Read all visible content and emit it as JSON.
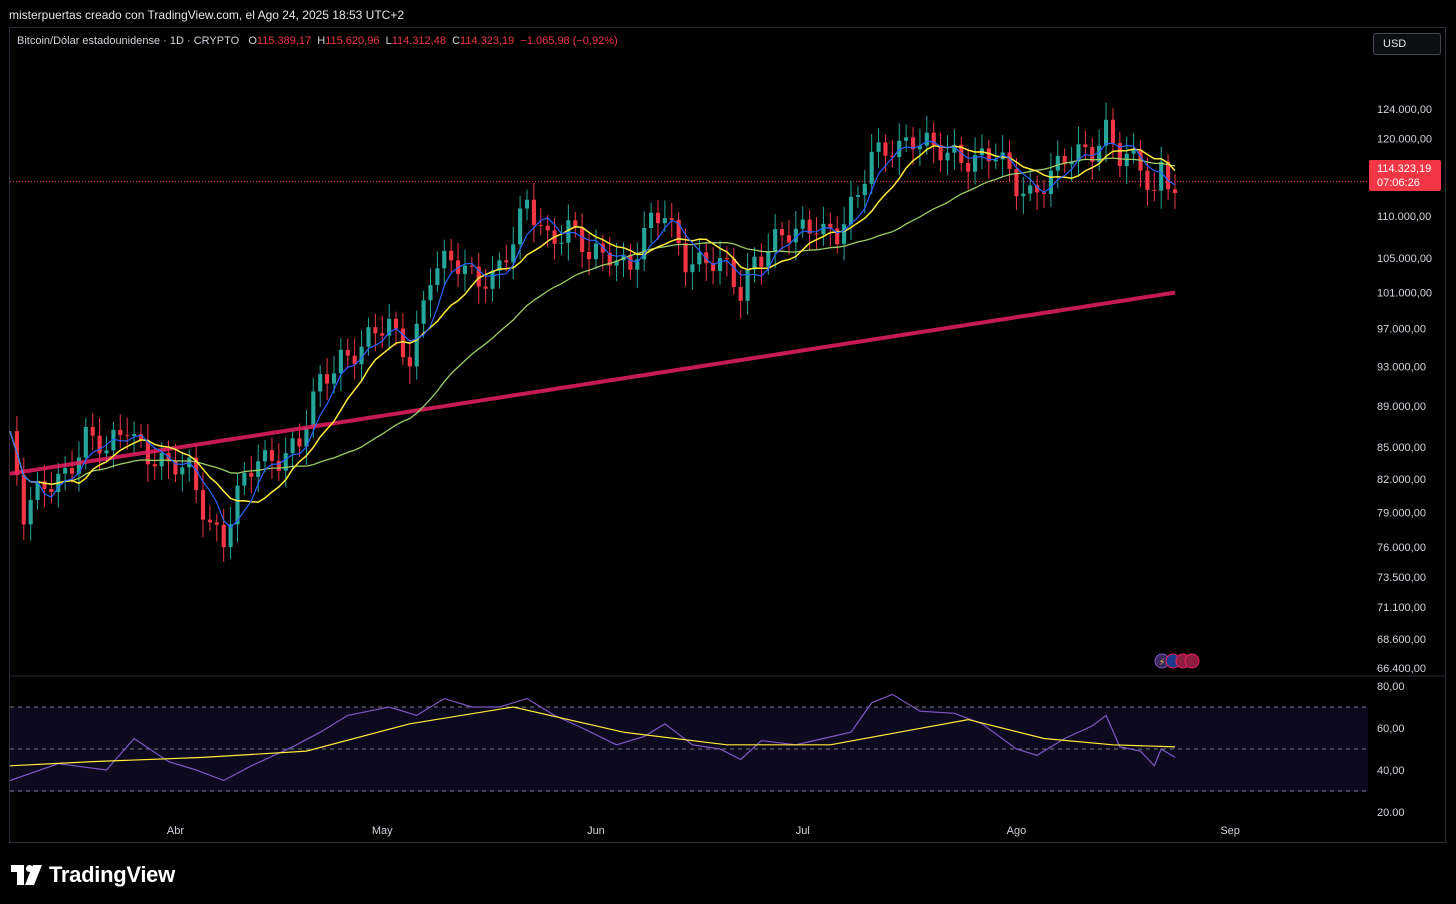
{
  "header": {
    "caption": "misterpuertas creado con TradingView.com, el Ago 24, 2025 18:53 UTC+2"
  },
  "legend": {
    "symbol": "Bitcoin/Dólar estadounidense · 1D · CRYPTO",
    "o_label": "O",
    "o_value": "115.389,17",
    "h_label": "H",
    "h_value": "115.620,96",
    "l_label": "L",
    "l_value": "114.312,48",
    "c_label": "C",
    "c_value": "114.323,19",
    "change": "−1.065,98 (−0,92%)"
  },
  "currency_button": "USD",
  "last_price": {
    "price": "114.323,19",
    "countdown": "07:06:26"
  },
  "footer": {
    "brand": "TradingView"
  },
  "colors": {
    "up": "#26a69a",
    "down": "#f23645",
    "ma_fast": "#2962ff",
    "ma_mid": "#ffeb3b",
    "ma_slow": "#9ccc65",
    "ma_long": "#e91e63",
    "rsi": "#7e57c2",
    "rsi_ma": "#ffeb3b"
  },
  "chart_data": [
    {
      "type": "candlestick",
      "title": "Bitcoin/Dólar estadounidense · 1D · CRYPTO",
      "scale": "log",
      "y_ticks": [
        "124.000,00",
        "120.000,00",
        "110.000,00",
        "105.000,00",
        "101.000,00",
        "97.000,00",
        "93.000,00",
        "89.000,00",
        "85.000,00",
        "82.000,00",
        "79.000,00",
        "76.000,00",
        "73.500,00",
        "71.100,00",
        "68.600,00",
        "66.400,00"
      ],
      "y_tick_values": [
        124000,
        120000,
        110000,
        105000,
        101000,
        97000,
        93000,
        89000,
        85000,
        82000,
        79000,
        76000,
        73500,
        71100,
        68600,
        66400
      ],
      "x_ticks": [
        "Abr",
        "May",
        "Jun",
        "Jul",
        "Ago",
        "Sep"
      ],
      "x_tick_dates": [
        "2025-04-01",
        "2025-05-01",
        "2025-06-01",
        "2025-07-01",
        "2025-08-01",
        "2025-09-01"
      ],
      "ylim": [
        66400,
        127500
      ],
      "xlim": [
        "2025-03-08",
        "2025-09-21"
      ],
      "close_series": [
        [
          "2025-03-08",
          86000
        ],
        [
          "2025-03-10",
          78500
        ],
        [
          "2025-03-13",
          81000
        ],
        [
          "2025-03-16",
          83000
        ],
        [
          "2025-03-19",
          86000
        ],
        [
          "2025-03-22",
          84000
        ],
        [
          "2025-03-25",
          87500
        ],
        [
          "2025-03-28",
          84500
        ],
        [
          "2025-03-31",
          82500
        ],
        [
          "2025-04-03",
          83000
        ],
        [
          "2025-04-06",
          78500
        ],
        [
          "2025-04-08",
          76500
        ],
        [
          "2025-04-10",
          80000
        ],
        [
          "2025-04-13",
          84000
        ],
        [
          "2025-04-16",
          84500
        ],
        [
          "2025-04-19",
          85000
        ],
        [
          "2025-04-22",
          91000
        ],
        [
          "2025-04-25",
          94500
        ],
        [
          "2025-04-28",
          95000
        ],
        [
          "2025-05-02",
          97000
        ],
        [
          "2025-05-05",
          94500
        ],
        [
          "2025-05-08",
          103000
        ],
        [
          "2025-05-11",
          104000
        ],
        [
          "2025-05-14",
          103500
        ],
        [
          "2025-05-17",
          103000
        ],
        [
          "2025-05-20",
          106000
        ],
        [
          "2025-05-22",
          111500
        ],
        [
          "2025-05-25",
          108000
        ],
        [
          "2025-05-28",
          108500
        ],
        [
          "2025-05-31",
          104500
        ],
        [
          "2025-06-03",
          106000
        ],
        [
          "2025-06-06",
          104500
        ],
        [
          "2025-06-09",
          108500
        ],
        [
          "2025-06-11",
          110000
        ],
        [
          "2025-06-14",
          105500
        ],
        [
          "2025-06-17",
          104500
        ],
        [
          "2025-06-20",
          103000
        ],
        [
          "2025-06-22",
          101000
        ],
        [
          "2025-06-24",
          105500
        ],
        [
          "2025-06-27",
          107000
        ],
        [
          "2025-06-30",
          107200
        ],
        [
          "2025-07-03",
          109500
        ],
        [
          "2025-07-06",
          108200
        ],
        [
          "2025-07-09",
          111500
        ],
        [
          "2025-07-11",
          117500
        ],
        [
          "2025-07-14",
          119800
        ],
        [
          "2025-07-17",
          119500
        ],
        [
          "2025-07-20",
          117800
        ],
        [
          "2025-07-23",
          118500
        ],
        [
          "2025-07-26",
          117500
        ],
        [
          "2025-07-29",
          117000
        ],
        [
          "2025-08-01",
          114000
        ],
        [
          "2025-08-03",
          113500
        ],
        [
          "2025-08-06",
          115000
        ],
        [
          "2025-08-09",
          117000
        ],
        [
          "2025-08-12",
          119000
        ],
        [
          "2025-08-14",
          122000
        ],
        [
          "2025-08-16",
          117500
        ],
        [
          "2025-08-19",
          115500
        ],
        [
          "2025-08-21",
          112500
        ],
        [
          "2025-08-22",
          116800
        ],
        [
          "2025-08-24",
          114323
        ]
      ]
    },
    {
      "type": "line",
      "title": "RSI",
      "y_ticks": [
        "80,00",
        "60,00",
        "40,00",
        "20.00"
      ],
      "y_tick_values": [
        80,
        60,
        40,
        20
      ],
      "ylim": [
        20,
        80
      ],
      "bands": [
        70,
        50,
        30
      ],
      "rsi_series": [
        [
          "2025-03-08",
          35
        ],
        [
          "2025-03-15",
          43
        ],
        [
          "2025-03-22",
          40
        ],
        [
          "2025-03-26",
          55
        ],
        [
          "2025-03-31",
          44
        ],
        [
          "2025-04-04",
          40
        ],
        [
          "2025-04-08",
          35
        ],
        [
          "2025-04-12",
          42
        ],
        [
          "2025-04-18",
          51
        ],
        [
          "2025-04-22",
          58
        ],
        [
          "2025-04-26",
          66
        ],
        [
          "2025-05-02",
          70
        ],
        [
          "2025-05-06",
          66
        ],
        [
          "2025-05-10",
          74
        ],
        [
          "2025-05-14",
          70
        ],
        [
          "2025-05-18",
          70
        ],
        [
          "2025-05-22",
          74
        ],
        [
          "2025-05-26",
          66
        ],
        [
          "2025-05-30",
          60
        ],
        [
          "2025-06-04",
          52
        ],
        [
          "2025-06-08",
          56
        ],
        [
          "2025-06-11",
          62
        ],
        [
          "2025-06-15",
          52
        ],
        [
          "2025-06-19",
          50
        ],
        [
          "2025-06-22",
          45
        ],
        [
          "2025-06-25",
          54
        ],
        [
          "2025-06-30",
          52
        ],
        [
          "2025-07-04",
          55
        ],
        [
          "2025-07-08",
          58
        ],
        [
          "2025-07-11",
          72
        ],
        [
          "2025-07-14",
          76
        ],
        [
          "2025-07-18",
          68
        ],
        [
          "2025-07-23",
          67
        ],
        [
          "2025-07-27",
          62
        ],
        [
          "2025-08-01",
          50
        ],
        [
          "2025-08-04",
          47
        ],
        [
          "2025-08-08",
          55
        ],
        [
          "2025-08-12",
          61
        ],
        [
          "2025-08-14",
          66
        ],
        [
          "2025-08-16",
          51
        ],
        [
          "2025-08-19",
          49
        ],
        [
          "2025-08-21",
          42
        ],
        [
          "2025-08-22",
          50
        ],
        [
          "2025-08-24",
          46
        ]
      ],
      "rsi_ma_series": [
        [
          "2025-03-08",
          42
        ],
        [
          "2025-03-20",
          44
        ],
        [
          "2025-04-05",
          46
        ],
        [
          "2025-04-20",
          49
        ],
        [
          "2025-05-05",
          62
        ],
        [
          "2025-05-20",
          70
        ],
        [
          "2025-06-05",
          58
        ],
        [
          "2025-06-20",
          52
        ],
        [
          "2025-07-05",
          52
        ],
        [
          "2025-07-15",
          58
        ],
        [
          "2025-07-25",
          64
        ],
        [
          "2025-08-05",
          55
        ],
        [
          "2025-08-15",
          52
        ],
        [
          "2025-08-24",
          51
        ]
      ]
    }
  ]
}
